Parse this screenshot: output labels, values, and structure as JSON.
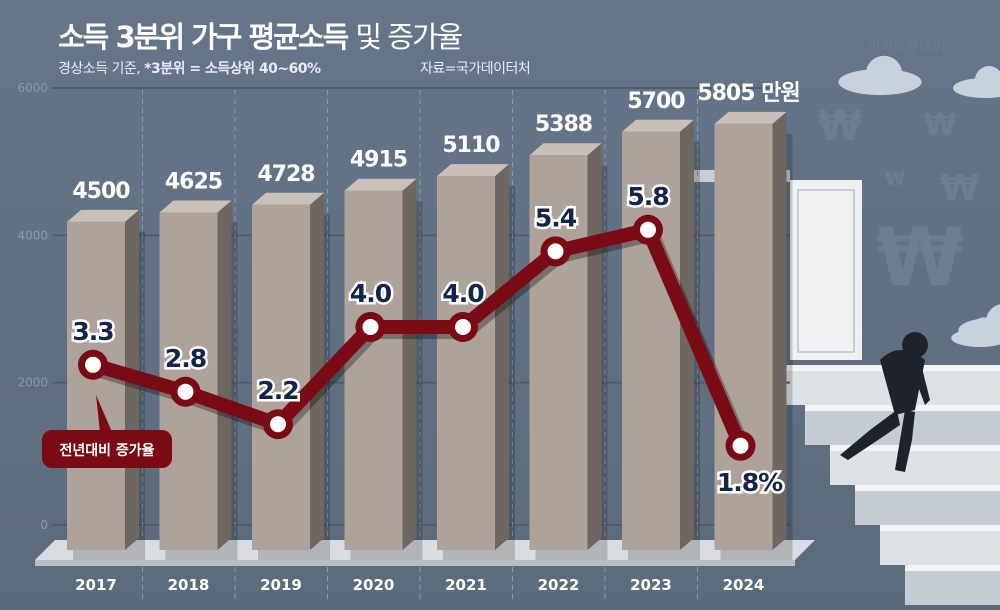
{
  "header": {
    "title_bold": "소득 3분위 가구 평균소득",
    "title_light": "및 증가율",
    "subtitle_prefix": "경상소득 기준, ",
    "subtitle_bold": "*3분위 = 소득상위 40~60%",
    "source": "자료=국가데이터처",
    "watermark": "아시아투데이"
  },
  "colors": {
    "bar": "#ada39a",
    "bar_side": "#6e6660",
    "bar_top": "#c9c1b9",
    "line": "#7a0a14",
    "label": "#13254a"
  },
  "chart_data": {
    "type": "bar+line",
    "title": "소득 3분위 가구 평균소득 및 증가율",
    "categories": [
      "2017",
      "2018",
      "2019",
      "2020",
      "2021",
      "2022",
      "2023",
      "2024"
    ],
    "y_ticks": [
      "6000",
      "4000",
      "2000",
      "0"
    ],
    "ylim": [
      0,
      6000
    ],
    "unit_label": "만원",
    "series": [
      {
        "name": "평균소득",
        "type": "bar",
        "values": [
          4500,
          4625,
          4728,
          4915,
          5110,
          5388,
          5700,
          5805
        ],
        "labels": [
          "4500",
          "4625",
          "4728",
          "4915",
          "5110",
          "5388",
          "5700",
          "5805 만원"
        ]
      },
      {
        "name": "전년대비 증가율",
        "type": "line",
        "values": [
          3.3,
          2.8,
          2.2,
          4.0,
          4.0,
          5.4,
          5.8,
          1.8
        ],
        "labels": [
          "3.3",
          "2.8",
          "2.2",
          "4.0",
          "4.0",
          "5.4",
          "5.8",
          "1.8%"
        ]
      }
    ],
    "legend": {
      "line_label": "전년대비 증가율",
      "placement": "bottom-left"
    }
  }
}
